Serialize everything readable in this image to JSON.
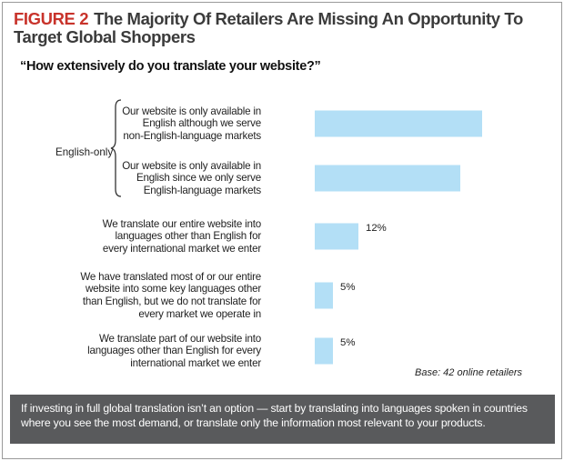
{
  "figure": {
    "number": "FIGURE 2",
    "title": "The Majority Of Retailers Are Missing An Opportunity To Target Global Shoppers"
  },
  "question": "“How extensively do you translate your website?”",
  "group_label": "English-only",
  "chart_data": {
    "type": "bar",
    "orientation": "horizontal",
    "categories": [
      [
        "Our website is only available in",
        "English although we serve",
        "non-English-language markets"
      ],
      [
        "Our website is only available in",
        "English since we only serve",
        "English-language markets"
      ],
      [
        "We translate our entire website into",
        "languages other than English for",
        "every international market we enter"
      ],
      [
        "We have translated most of or our entire",
        "website into some key languages other",
        "than English, but we do not translate for",
        "every market we operate in"
      ],
      [
        "We translate part of our website into",
        "languages other than English for every",
        "international market we enter"
      ]
    ],
    "values": [
      46,
      40,
      12,
      5,
      5
    ],
    "value_labels": [
      "",
      "",
      "12%",
      "5%",
      "5%"
    ],
    "bar_color": "#b3dff6",
    "note": "Base: 42 online retailers"
  },
  "footer_note": "If investing in full global translation isn’t an option — start by translating into languages spoken in countries where you see the most demand, or translate only the information most relevant to your products."
}
